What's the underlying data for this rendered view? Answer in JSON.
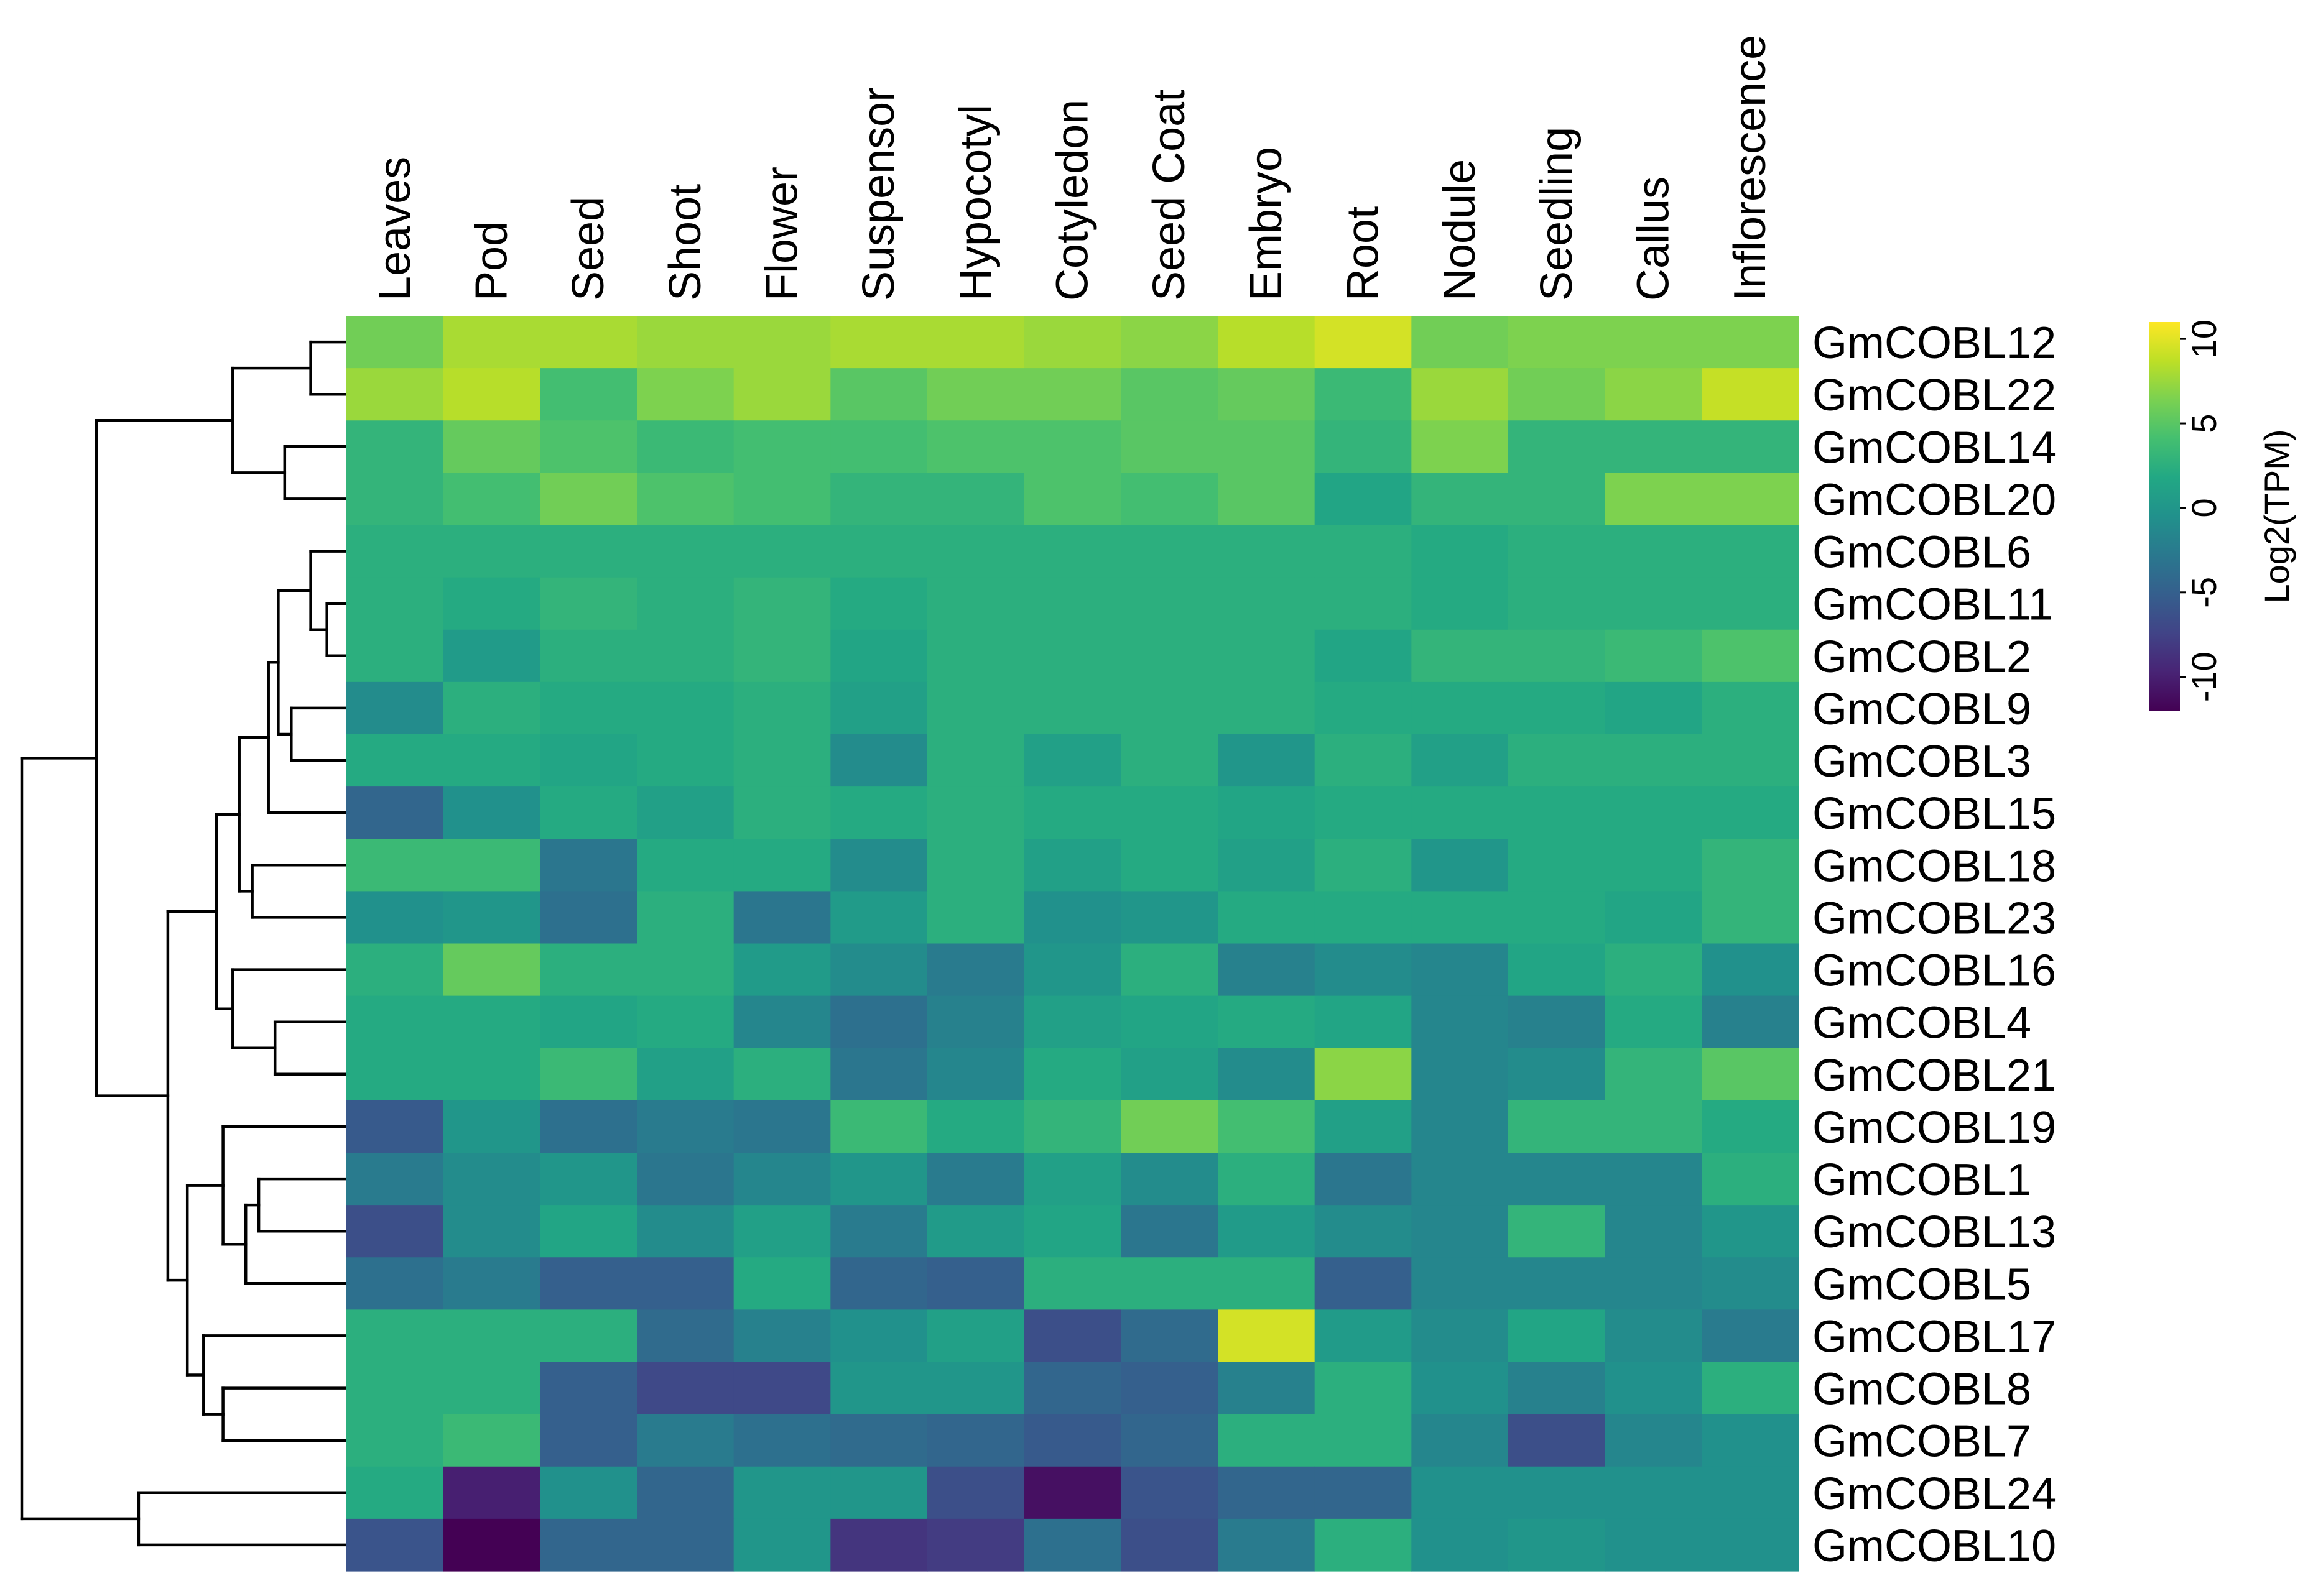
{
  "chart_data": {
    "type": "heatmap",
    "title": "",
    "colorbar_label": "Log2(TPM)",
    "colorbar_ticks": [
      "10",
      "5",
      "0",
      "-5",
      "-10"
    ],
    "colorbar_tick_values": [
      10,
      5,
      0,
      -5,
      -10
    ],
    "color_range": [
      -12,
      11
    ],
    "colormap": "viridis",
    "columns": [
      "Leaves",
      "Pod",
      "Seed",
      "Shoot",
      "Flower",
      "Suspensor",
      "Hypocotyl",
      "Cotyledon",
      "Seed Coat",
      "Embryo",
      "Root",
      "Nodule",
      "Seedling",
      "Callus",
      "Inflorescence"
    ],
    "rows": [
      "GmCOBL12",
      "GmCOBL22",
      "GmCOBL14",
      "GmCOBL20",
      "GmCOBL6",
      "GmCOBL11",
      "GmCOBL2",
      "GmCOBL9",
      "GmCOBL3",
      "GmCOBL15",
      "GmCOBL18",
      "GmCOBL23",
      "GmCOBL16",
      "GmCOBL4",
      "GmCOBL21",
      "GmCOBL19",
      "GmCOBL1",
      "GmCOBL13",
      "GmCOBL5",
      "GmCOBL17",
      "GmCOBL8",
      "GmCOBL7",
      "GmCOBL24",
      "GmCOBL10"
    ],
    "values": [
      [
        6,
        8,
        8,
        7.5,
        7.5,
        8,
        8,
        7.5,
        7,
        8.5,
        9.5,
        6,
        6.5,
        6.5,
        6.5
      ],
      [
        7.5,
        8.5,
        4,
        6.5,
        7.5,
        5,
        6,
        6,
        5,
        5.5,
        3.5,
        7.5,
        6,
        7,
        9
      ],
      [
        3,
        5.5,
        4.5,
        3.5,
        4,
        4,
        4.5,
        4.5,
        5,
        5,
        3,
        6.5,
        3,
        3,
        3
      ],
      [
        3,
        4,
        6,
        4.5,
        4,
        3,
        3,
        4.5,
        4,
        5,
        1.5,
        3,
        3,
        6.5,
        6.5
      ],
      [
        2.5,
        2.5,
        2.5,
        2.5,
        2.5,
        2.5,
        2.5,
        2.5,
        2.5,
        2.5,
        2.5,
        2,
        2.5,
        2.5,
        2.5
      ],
      [
        2.5,
        2,
        3,
        2.5,
        3,
        2,
        2.5,
        2.5,
        2.5,
        2.5,
        2.5,
        2,
        2.5,
        2.5,
        2.5
      ],
      [
        2.5,
        0.5,
        2.5,
        2.5,
        3,
        1.5,
        2.5,
        2.5,
        2.5,
        2.5,
        1.5,
        3,
        3,
        3.5,
        4.5
      ],
      [
        -1,
        2.5,
        2,
        2,
        2.5,
        1,
        2.5,
        2.5,
        2.5,
        2.5,
        2,
        2,
        2,
        1.5,
        2.5
      ],
      [
        2,
        2,
        1.5,
        2,
        2.5,
        -1,
        2.5,
        1,
        2.5,
        0,
        2.5,
        1,
        2.5,
        2.5,
        2.5
      ],
      [
        -4.5,
        -0.5,
        2,
        1,
        2.5,
        2,
        2.5,
        2,
        2,
        1.5,
        2,
        2,
        2,
        2,
        2
      ],
      [
        3.5,
        3.5,
        -3,
        2,
        2,
        -1,
        2.5,
        1,
        2,
        1,
        2.5,
        0,
        2,
        2,
        3
      ],
      [
        -0.5,
        0,
        -3.5,
        2.5,
        -3,
        0.5,
        2.5,
        -0.5,
        0,
        2,
        2,
        2,
        2,
        1.5,
        3
      ],
      [
        2.5,
        5.5,
        2.5,
        2.5,
        0.5,
        -1,
        -2.5,
        0,
        2.5,
        -2,
        -1,
        -1.5,
        1.5,
        2.5,
        -0.5
      ],
      [
        2,
        2,
        1.5,
        2,
        -1.5,
        -3.5,
        -2,
        1,
        1.5,
        2,
        1.5,
        -1.5,
        -2,
        2,
        -2
      ],
      [
        2,
        2,
        3.5,
        1,
        2.5,
        -3,
        -1.5,
        2,
        1,
        -1,
        7,
        -1.5,
        -1,
        3,
        5
      ],
      [
        -5.5,
        0,
        -3.5,
        -2.5,
        -3,
        3.5,
        2,
        3,
        6,
        4,
        1,
        -1.5,
        3,
        3,
        2
      ],
      [
        -2.5,
        -1,
        0,
        -3,
        -1.5,
        0,
        -2.5,
        1,
        -1,
        2.5,
        -3,
        -1.5,
        -1.5,
        -1.5,
        2.5
      ],
      [
        -6.5,
        -1,
        1.5,
        -1,
        1,
        -2.5,
        0.5,
        1.5,
        -3,
        0.5,
        -1,
        -1.5,
        3,
        -1.5,
        0
      ],
      [
        -3.5,
        -2.5,
        -5,
        -5,
        2,
        -4.5,
        -5,
        2.5,
        2.5,
        2.5,
        -5,
        -1.5,
        -1.5,
        -1.5,
        -1
      ],
      [
        2.5,
        2.5,
        2.5,
        -4,
        -2,
        -0.5,
        1,
        -6.5,
        -4,
        9.5,
        0.5,
        -1,
        1.5,
        -1,
        -2.5
      ],
      [
        2.5,
        2.5,
        -5,
        -7,
        -7,
        0,
        0,
        -4.5,
        -5,
        -2,
        2.5,
        -0.5,
        -2,
        -0.5,
        2.5
      ],
      [
        2.5,
        3.5,
        -5,
        -2.5,
        -3.5,
        -4,
        -4.5,
        -5.5,
        -4.5,
        2.5,
        2.5,
        -1.5,
        -6.5,
        -1.5,
        -0.5
      ],
      [
        2,
        -10,
        -0.5,
        -4.5,
        0,
        0,
        -6.5,
        -11,
        -6,
        -4.5,
        -4.5,
        -0.5,
        -0.5,
        -0.5,
        -0.5
      ],
      [
        -6,
        -12,
        -4.5,
        -4.5,
        0,
        -8.5,
        -8,
        -3.5,
        -6.5,
        -2.5,
        2.5,
        -0.5,
        0,
        -0.5,
        -0.5
      ]
    ],
    "row_dendrogram": {
      "method": "hierarchical",
      "merges": [
        [
          0,
          1
        ],
        [
          2,
          3
        ],
        [
          24,
          25
        ],
        [
          5,
          6
        ],
        [
          4,
          27
        ],
        [
          7,
          8
        ],
        [
          28,
          29
        ],
        [
          30,
          9
        ],
        [
          10,
          11
        ],
        [
          13,
          14
        ],
        [
          12,
          33
        ],
        [
          31,
          32
        ],
        [
          35,
          34
        ],
        [
          16,
          17
        ],
        [
          37,
          18
        ],
        [
          15,
          38
        ],
        [
          20,
          21
        ],
        [
          19,
          40
        ],
        [
          39,
          41
        ],
        [
          36,
          42
        ],
        [
          22,
          23
        ],
        [
          26,
          43
        ],
        [
          45,
          44
        ]
      ],
      "heights": [
        0.55,
        0.95,
        1.75,
        0.3,
        0.55,
        0.85,
        1.05,
        1.2,
        1.45,
        1.1,
        1.75,
        1.65,
        2.0,
        1.35,
        1.55,
        1.9,
        1.9,
        2.2,
        2.45,
        2.75,
        3.2,
        3.85,
        5.0
      ]
    }
  }
}
